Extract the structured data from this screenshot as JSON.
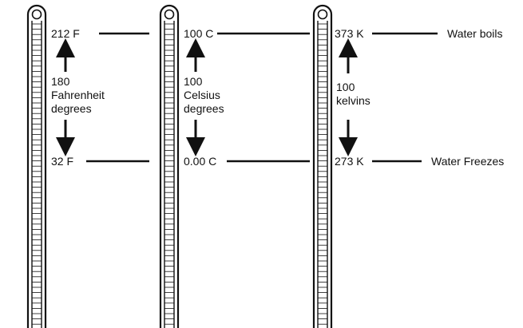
{
  "colors": {
    "ink": "#111111",
    "background": "#ffffff"
  },
  "fahrenheit": {
    "boil_label": "212 F",
    "freeze_label": "32 F",
    "span": [
      "180",
      "Fahrenheit",
      "degrees"
    ]
  },
  "celsius": {
    "boil_label": "100 C",
    "freeze_label": "0.00 C",
    "span": [
      "100",
      "Celsius",
      "degrees"
    ]
  },
  "kelvin": {
    "boil_label": "373 K",
    "freeze_label": "273 K",
    "span": [
      "100",
      "kelvins"
    ]
  },
  "events": {
    "boil": "Water boils",
    "freeze": "Water Freezes"
  },
  "icons": [
    "thermometer-icon",
    "arrow-up-icon",
    "arrow-down-icon"
  ]
}
